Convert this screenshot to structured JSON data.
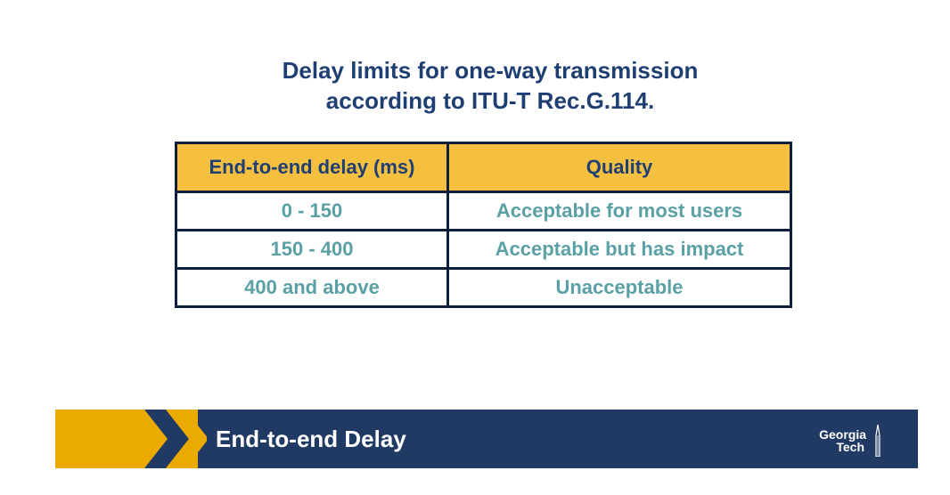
{
  "title": {
    "line1": "Delay limits for one-way transmission",
    "line2": "according to ITU-T Rec.G.114."
  },
  "table": {
    "headers": [
      "End-to-end delay (ms)",
      "Quality"
    ],
    "rows": [
      [
        "0 - 150",
        "Acceptable for most users"
      ],
      [
        "150 - 400",
        "Acceptable but has impact"
      ],
      [
        "400 and above",
        "Unacceptable"
      ]
    ]
  },
  "footer": {
    "title": "End-to-end Delay",
    "logo_line1": "Georgia",
    "logo_line2": "Tech"
  },
  "colors": {
    "title": "#1f3f73",
    "header_fill": "#f5bf40",
    "cell_text": "#5aa0a5",
    "footer_navy": "#203a63",
    "footer_gold": "#eaaa00"
  }
}
